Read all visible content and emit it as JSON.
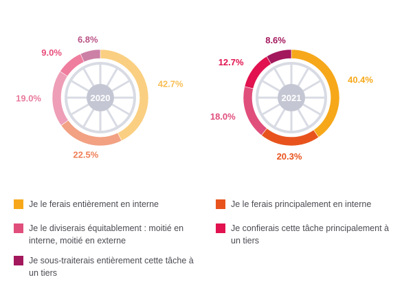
{
  "colors": {
    "entierement_interne": "#f6a81a",
    "principalement_interne": "#e8531d",
    "moitie": "#e04e7c",
    "principalement_tiers": "#e1124f",
    "entierement_tiers": "#a3175c",
    "hub": "#c4c7d3",
    "wheel": "#d9dbe4"
  },
  "legend": [
    {
      "key": "entierement_interne",
      "label": "Je le ferais entièrement en interne"
    },
    {
      "key": "principalement_interne",
      "label": "Je le ferais principalement en interne"
    },
    {
      "key": "moitie",
      "label": "Je le diviserais équitablement : moitié en interne, moitié en externe"
    },
    {
      "key": "principalement_tiers",
      "label": "Je confierais cette tâche principalement à un tiers"
    },
    {
      "key": "entierement_tiers",
      "label": "Je sous-traiterais entièrement cette tâche à un tiers"
    }
  ],
  "chart_data": [
    {
      "type": "pie",
      "style": "donut",
      "center_label": "2020",
      "faded": true,
      "categories": [
        "entierement_interne",
        "principalement_interne",
        "moitie",
        "principalement_tiers",
        "entierement_tiers"
      ],
      "values": [
        42.7,
        22.5,
        19.0,
        9.0,
        6.8
      ],
      "labels": [
        "42.7%",
        "22.5%",
        "19.0%",
        "9.0%",
        "6.8%"
      ]
    },
    {
      "type": "pie",
      "style": "donut",
      "center_label": "2021",
      "faded": false,
      "categories": [
        "entierement_interne",
        "principalement_interne",
        "moitie",
        "principalement_tiers",
        "entierement_tiers"
      ],
      "values": [
        40.4,
        20.3,
        18.0,
        12.7,
        8.6
      ],
      "labels": [
        "40.4%",
        "20.3%",
        "18.0%",
        "12.7%",
        "8.6%"
      ]
    }
  ]
}
